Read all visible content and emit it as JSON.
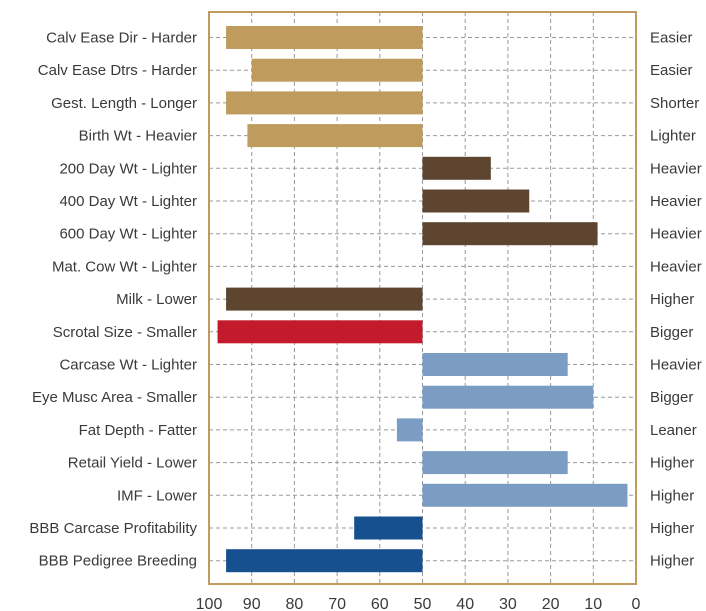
{
  "chart_data": {
    "type": "bar",
    "orientation": "horizontal",
    "title": "",
    "xlabel": "",
    "ylabel": "",
    "xlim": [
      100,
      0
    ],
    "x_reversed": true,
    "x_ticks": [
      100,
      90,
      80,
      70,
      60,
      50,
      40,
      30,
      20,
      10,
      0
    ],
    "baseline": 50,
    "grid": true,
    "rows": [
      {
        "label": "Calv Ease Dir - Harder",
        "right_label": "Easier",
        "value": 96,
        "color": "#bf9b5e"
      },
      {
        "label": "Calv Ease Dtrs - Harder",
        "right_label": "Easier",
        "value": 90,
        "color": "#bf9b5e"
      },
      {
        "label": "Gest. Length - Longer",
        "right_label": "Shorter",
        "value": 96,
        "color": "#bf9b5e"
      },
      {
        "label": "Birth Wt - Heavier",
        "right_label": "Lighter",
        "value": 91,
        "color": "#bf9b5e"
      },
      {
        "label": "200 Day Wt - Lighter",
        "right_label": "Heavier",
        "value": 34,
        "color": "#5d4530"
      },
      {
        "label": "400 Day Wt - Lighter",
        "right_label": "Heavier",
        "value": 25,
        "color": "#5d4530"
      },
      {
        "label": "600 Day Wt - Lighter",
        "right_label": "Heavier",
        "value": 9,
        "color": "#5d4530"
      },
      {
        "label": "Mat. Cow Wt - Lighter",
        "right_label": "Heavier",
        "value": null,
        "color": "#5d4530"
      },
      {
        "label": "Milk - Lower",
        "right_label": "Higher",
        "value": 96,
        "color": "#5d4530"
      },
      {
        "label": "Scrotal Size - Smaller",
        "right_label": "Bigger",
        "value": 98,
        "color": "#c41b2c"
      },
      {
        "label": "Carcase Wt - Lighter",
        "right_label": "Heavier",
        "value": 16,
        "color": "#7b9dc4"
      },
      {
        "label": "Eye Musc Area - Smaller",
        "right_label": "Bigger",
        "value": 10,
        "color": "#7b9dc4"
      },
      {
        "label": "Fat Depth - Fatter",
        "right_label": "Leaner",
        "value": 56,
        "color": "#7b9dc4"
      },
      {
        "label": "Retail Yield - Lower",
        "right_label": "Higher",
        "value": 16,
        "color": "#7b9dc4"
      },
      {
        "label": "IMF - Lower",
        "right_label": "Higher",
        "value": 2,
        "color": "#7b9dc4"
      },
      {
        "label": "BBB Carcase Profitability",
        "right_label": "Higher",
        "value": 66,
        "color": "#16508f"
      },
      {
        "label": "BBB Pedigree Breeding",
        "right_label": "Higher",
        "value": 96,
        "color": "#16508f"
      }
    ],
    "frame_color": "#bf9b5e",
    "grid_color": "#9a9a9a"
  }
}
